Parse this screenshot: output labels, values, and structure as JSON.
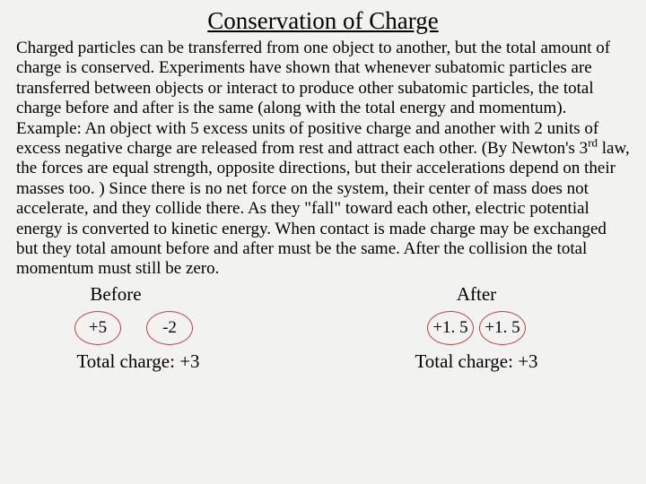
{
  "title": "Conservation of Charge",
  "paragraph_html": "Charged particles can be transferred from one object to another, but the total amount of charge is conserved. Experiments have shown that whenever subatomic particles are transferred between objects or interact to produce other subatomic particles, the total charge before and after is the same (along with the total energy and momentum). Example: An object with 5 excess units of positive charge and another with 2 units of excess negative charge are released from rest and attract each other. (By Newton's 3<span class=\"sup\">rd</span> law, the forces are equal strength, opposite directions, but their accelerations depend on their masses too. ) Since there is no net force on the system, their center of mass does not accelerate, and they collide there. As they \"fall\" toward each other, electric potential energy is converted to kinetic energy. When contact is made charge may be exchanged but they total amount before and after must be the same. After the collision the total momentum must still be zero.",
  "before": {
    "label": "Before",
    "ball1": "+5",
    "ball2": "-2",
    "total": "Total charge: +3"
  },
  "after": {
    "label": "After",
    "ball1": "+1. 5",
    "ball2": "+1. 5",
    "total": "Total charge: +3"
  },
  "colors": {
    "ball_border": "#c04040",
    "background": "#f2f2f0",
    "text": "#000000"
  }
}
